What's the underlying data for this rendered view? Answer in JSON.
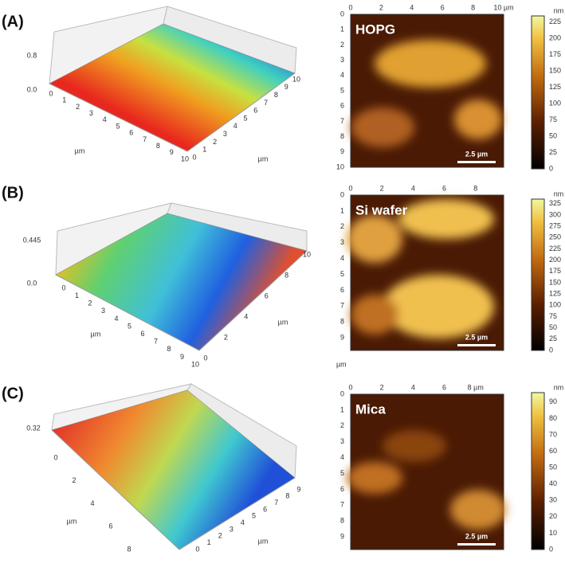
{
  "panels": [
    {
      "label": "(A)",
      "surface": {
        "z_ticks": [
          "0.8",
          "0.0"
        ],
        "front_ticks": [
          "0",
          "1",
          "2",
          "3",
          "4",
          "5",
          "6",
          "7",
          "8",
          "9",
          "10"
        ],
        "front_unit": "µm",
        "side_ticks": [
          "0",
          "1",
          "2",
          "3",
          "4",
          "5",
          "6",
          "7",
          "8",
          "9",
          "10"
        ],
        "side_unit": "µm"
      },
      "image": {
        "name": "HOPG",
        "top_ticks": [
          "0",
          "2",
          "4",
          "6",
          "8",
          "10 µm"
        ],
        "left_ticks": [
          "0",
          "1",
          "2",
          "3",
          "4",
          "5",
          "6",
          "7",
          "8",
          "9",
          "10"
        ],
        "scale_bar": "2.5 µm",
        "colorbar": {
          "unit": "nm",
          "ticks": [
            "0",
            "25",
            "50",
            "75",
            "100",
            "125",
            "150",
            "175",
            "200",
            "225"
          ]
        }
      }
    },
    {
      "label": "(B)",
      "surface": {
        "z_ticks": [
          "0.445",
          "0.0"
        ],
        "front_ticks": [
          "0",
          "1",
          "2",
          "3",
          "4",
          "5",
          "6",
          "7",
          "8",
          "9",
          "10"
        ],
        "front_unit": "µm",
        "side_ticks": [
          "0",
          "2",
          "4",
          "6",
          "8",
          "10"
        ],
        "side_unit": "µm"
      },
      "image": {
        "name": "Si wafer",
        "top_ticks": [
          "0",
          "2",
          "4",
          "6",
          "8"
        ],
        "left_ticks": [
          "0",
          "1",
          "2",
          "3",
          "4",
          "5",
          "6",
          "7",
          "8",
          "9"
        ],
        "bottom_unit": "µm",
        "scale_bar": "2.5 µm",
        "colorbar": {
          "unit": "nm",
          "ticks": [
            "0",
            "25",
            "50",
            "75",
            "100",
            "125",
            "150",
            "175",
            "200",
            "225",
            "250",
            "275",
            "300",
            "325"
          ]
        }
      }
    },
    {
      "label": "(C)",
      "surface": {
        "z_ticks": [
          "0.32"
        ],
        "front_ticks": [
          "0",
          "2",
          "4",
          "6",
          "8"
        ],
        "front_unit": "µm",
        "side_ticks": [
          "0",
          "1",
          "2",
          "3",
          "4",
          "5",
          "6",
          "7",
          "8",
          "9"
        ],
        "side_unit": "µm"
      },
      "image": {
        "name": "Mica",
        "top_ticks": [
          "0",
          "2",
          "4",
          "6",
          "8 µm"
        ],
        "left_ticks": [
          "0",
          "1",
          "2",
          "3",
          "4",
          "5",
          "6",
          "7",
          "8",
          "9"
        ],
        "scale_bar": "2.5 µm",
        "colorbar": {
          "unit": "nm",
          "ticks": [
            "0",
            "10",
            "20",
            "30",
            "40",
            "50",
            "60",
            "70",
            "80",
            "90"
          ]
        }
      }
    }
  ]
}
